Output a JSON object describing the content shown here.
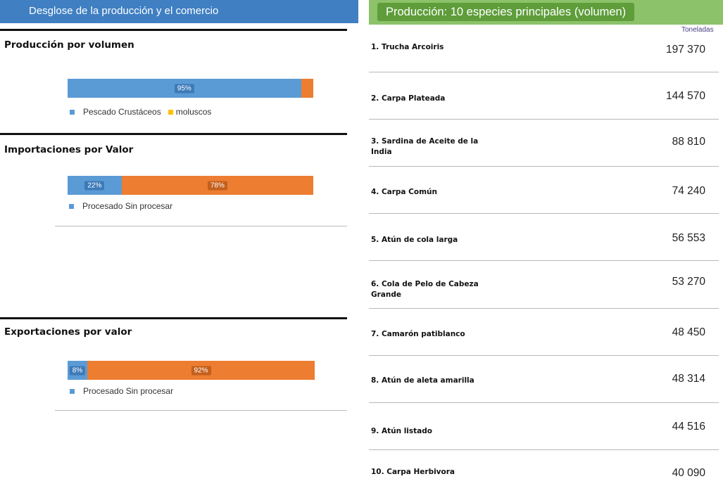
{
  "left": {
    "header": "Desglose de la producción y el comercio",
    "sections": [
      {
        "title": "Producción por volumen",
        "segments": [
          {
            "value": 95,
            "label": "95%",
            "color": "#5b9bd5",
            "label_bg": "#3d7ab8"
          },
          {
            "value": 5,
            "label": "",
            "color": "#ed7d31",
            "label_bg": ""
          }
        ],
        "legend": [
          {
            "label": "Pescado Crustáceos",
            "color": "#5b9bd5"
          },
          {
            "label": "moluscos",
            "color": "#ffc000"
          }
        ]
      },
      {
        "title": "Importaciones por Valor",
        "segments": [
          {
            "value": 22,
            "label": "22%",
            "color": "#5b9bd5",
            "label_bg": "#3d7ab8"
          },
          {
            "value": 78,
            "label": "78%",
            "color": "#ed7d31",
            "label_bg": "#c4601c"
          }
        ],
        "legend": [
          {
            "label": "Procesado Sin procesar",
            "color": "#5b9bd5"
          }
        ]
      },
      {
        "title": "Exportaciones por valor",
        "segments": [
          {
            "value": 8,
            "label": "8%",
            "color": "#5b9bd5",
            "label_bg": "#3d7ab8"
          },
          {
            "value": 92,
            "label": "92%",
            "color": "#ed7d31",
            "label_bg": "#c4601c"
          }
        ],
        "legend": [
          {
            "label": "Procesado Sin procesar",
            "color": "#5b9bd5"
          }
        ]
      }
    ]
  },
  "right": {
    "header": "Producción: 10 especies principales (volumen)",
    "unit": "Toneladas",
    "rows": [
      {
        "name": "1. Trucha Arcoiris",
        "value": "197 370"
      },
      {
        "name": "2. Carpa Plateada",
        "value": "144 570"
      },
      {
        "name": "3. Sardina de Aceite de la India",
        "value": "88 810"
      },
      {
        "name": "4. Carpa Común",
        "value": "74 240"
      },
      {
        "name": "5. Atún de cola larga",
        "value": "56 553"
      },
      {
        "name": "6. Cola de Pelo de Cabeza Grande",
        "value": "53 270"
      },
      {
        "name": "7. Camarón patiblanco",
        "value": "48 450"
      },
      {
        "name": "8. Atún de aleta amarilla",
        "value": "48 314"
      },
      {
        "name": "9. Atún listado",
        "value": "44 516"
      },
      {
        "name": "10. Carpa Herbivora",
        "value": "40 090"
      }
    ]
  },
  "chart_data": [
    {
      "type": "bar",
      "title": "Producción por volumen",
      "orientation": "horizontal-stacked-100",
      "series": [
        {
          "name": "Pescado Crustáceos",
          "values": [
            95
          ]
        },
        {
          "name": "moluscos",
          "values": [
            5
          ]
        }
      ]
    },
    {
      "type": "bar",
      "title": "Importaciones por Valor",
      "orientation": "horizontal-stacked-100",
      "series": [
        {
          "name": "Procesado",
          "values": [
            22
          ]
        },
        {
          "name": "Sin procesar",
          "values": [
            78
          ]
        }
      ]
    },
    {
      "type": "bar",
      "title": "Exportaciones por valor",
      "orientation": "horizontal-stacked-100",
      "series": [
        {
          "name": "Procesado",
          "values": [
            8
          ]
        },
        {
          "name": "Sin procesar",
          "values": [
            92
          ]
        }
      ]
    },
    {
      "type": "table",
      "title": "Producción: 10 especies principales (volumen)",
      "unit": "Toneladas",
      "categories": [
        "1. Trucha Arcoiris",
        "2. Carpa Plateada",
        "3. Sardina de Aceite de la India",
        "4. Carpa Común",
        "5. Atún de cola larga",
        "6. Cola de Pelo de Cabeza Grande",
        "7. Camarón patiblanco",
        "8. Atún de aleta amarilla",
        "9. Atún listado",
        "10. Carpa Herbivora"
      ],
      "values": [
        197370,
        144570,
        88810,
        74240,
        56553,
        53270,
        48450,
        48314,
        44516,
        40090
      ]
    }
  ]
}
